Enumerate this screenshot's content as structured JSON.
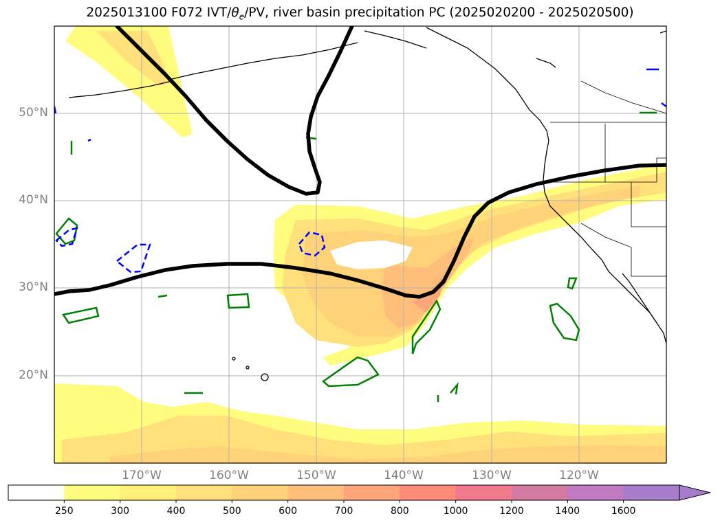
{
  "title_prefix": "2025013100 F072 IVT/",
  "title_theta": "θ",
  "title_theta_sub": "e",
  "title_suffix": "/PV, river basin precipitation PC (2025020200 - 2025020500)",
  "lat_labels": [
    "50°N",
    "40°N",
    "30°N",
    "20°N"
  ],
  "lon_labels": [
    "170°W",
    "160°W",
    "150°W",
    "140°W",
    "130°W",
    "120°W"
  ],
  "colorbar": {
    "ticks": [
      "250",
      "300",
      "400",
      "500",
      "600",
      "700",
      "800",
      "1000",
      "1200",
      "1400",
      "1600"
    ],
    "colors": [
      "#ffffff",
      "#fffc7e",
      "#fff07a",
      "#ffe07a",
      "#ffd27a",
      "#ffbf7a",
      "#ffa57a",
      "#ff8a7a",
      "#f07a8a",
      "#d27aa0",
      "#c07ac0",
      "#a77ccb"
    ]
  },
  "colors": {
    "pv_contour": "#000000",
    "precip_positive": "#008000",
    "precip_negative": "#0000ff",
    "grid": "#b0b0b0"
  }
}
